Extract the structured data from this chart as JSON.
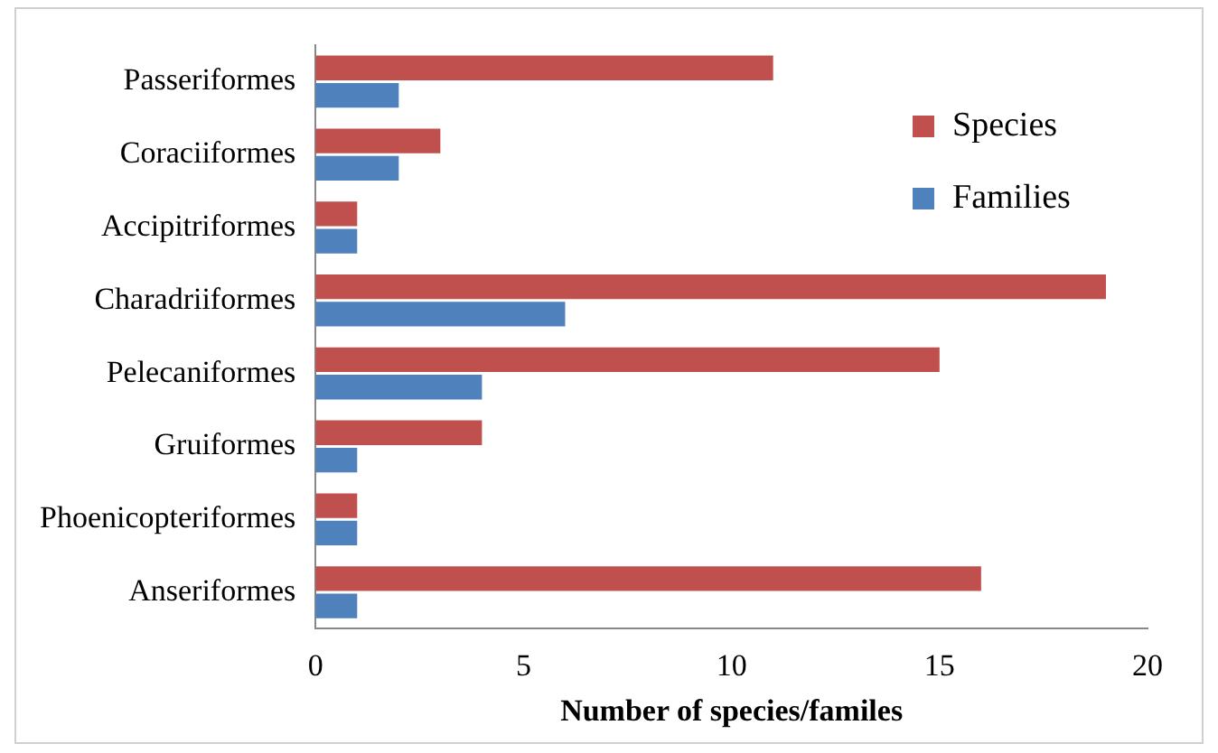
{
  "chart_data": {
    "type": "bar",
    "orientation": "horizontal",
    "xlabel": "Number of species/familes",
    "categories": [
      "Passeriformes",
      "Coraciiformes",
      "Accipitriformes",
      "Charadriiformes",
      "Pelecaniformes",
      "Gruiformes",
      "Phoenicopteriformes",
      "Anseriformes"
    ],
    "series": [
      {
        "name": "Species",
        "color": "#c0504d",
        "values": [
          11,
          3,
          1,
          19,
          15,
          4,
          1,
          16
        ]
      },
      {
        "name": "Families",
        "color": "#4f81bd",
        "values": [
          2,
          2,
          1,
          6,
          4,
          1,
          1,
          1
        ]
      }
    ],
    "xlim": [
      0,
      20
    ],
    "xticks": [
      0,
      5,
      10,
      15,
      20
    ],
    "grid": false,
    "legend": "top right"
  }
}
